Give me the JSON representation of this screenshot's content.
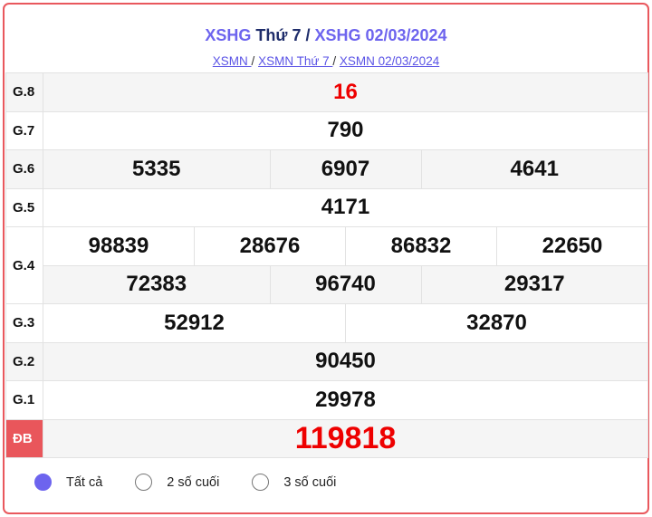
{
  "header": {
    "title_link1": "XSHG",
    "title_mid": " Thứ 7 / ",
    "title_link2": "XSHG 02/03/2024",
    "links": [
      "XSMN ",
      "XSMN Thứ 7 ",
      "XSMN 02/03/2024"
    ],
    "sep": " / "
  },
  "results": {
    "g8": {
      "label": "G.8",
      "values": [
        "16"
      ]
    },
    "g7": {
      "label": "G.7",
      "values": [
        "790"
      ]
    },
    "g6": {
      "label": "G.6",
      "values": [
        "5335",
        "6907",
        "4641"
      ]
    },
    "g5": {
      "label": "G.5",
      "values": [
        "4171"
      ]
    },
    "g4": {
      "label": "G.4",
      "values": [
        "98839",
        "28676",
        "86832",
        "22650",
        "72383",
        "96740",
        "29317"
      ]
    },
    "g3": {
      "label": "G.3",
      "values": [
        "52912",
        "32870"
      ]
    },
    "g2": {
      "label": "G.2",
      "values": [
        "90450"
      ]
    },
    "g1": {
      "label": "G.1",
      "values": [
        "29978"
      ]
    },
    "db": {
      "label": "ĐB",
      "values": [
        "119818"
      ]
    }
  },
  "options": [
    {
      "label": "Tất cả",
      "selected": true
    },
    {
      "label": "2 số cuối",
      "selected": false
    },
    {
      "label": "3 số cuối",
      "selected": false
    }
  ],
  "colors": {
    "accent": "#6d64ee",
    "border": "#e9585d",
    "special": "#ee0000"
  }
}
